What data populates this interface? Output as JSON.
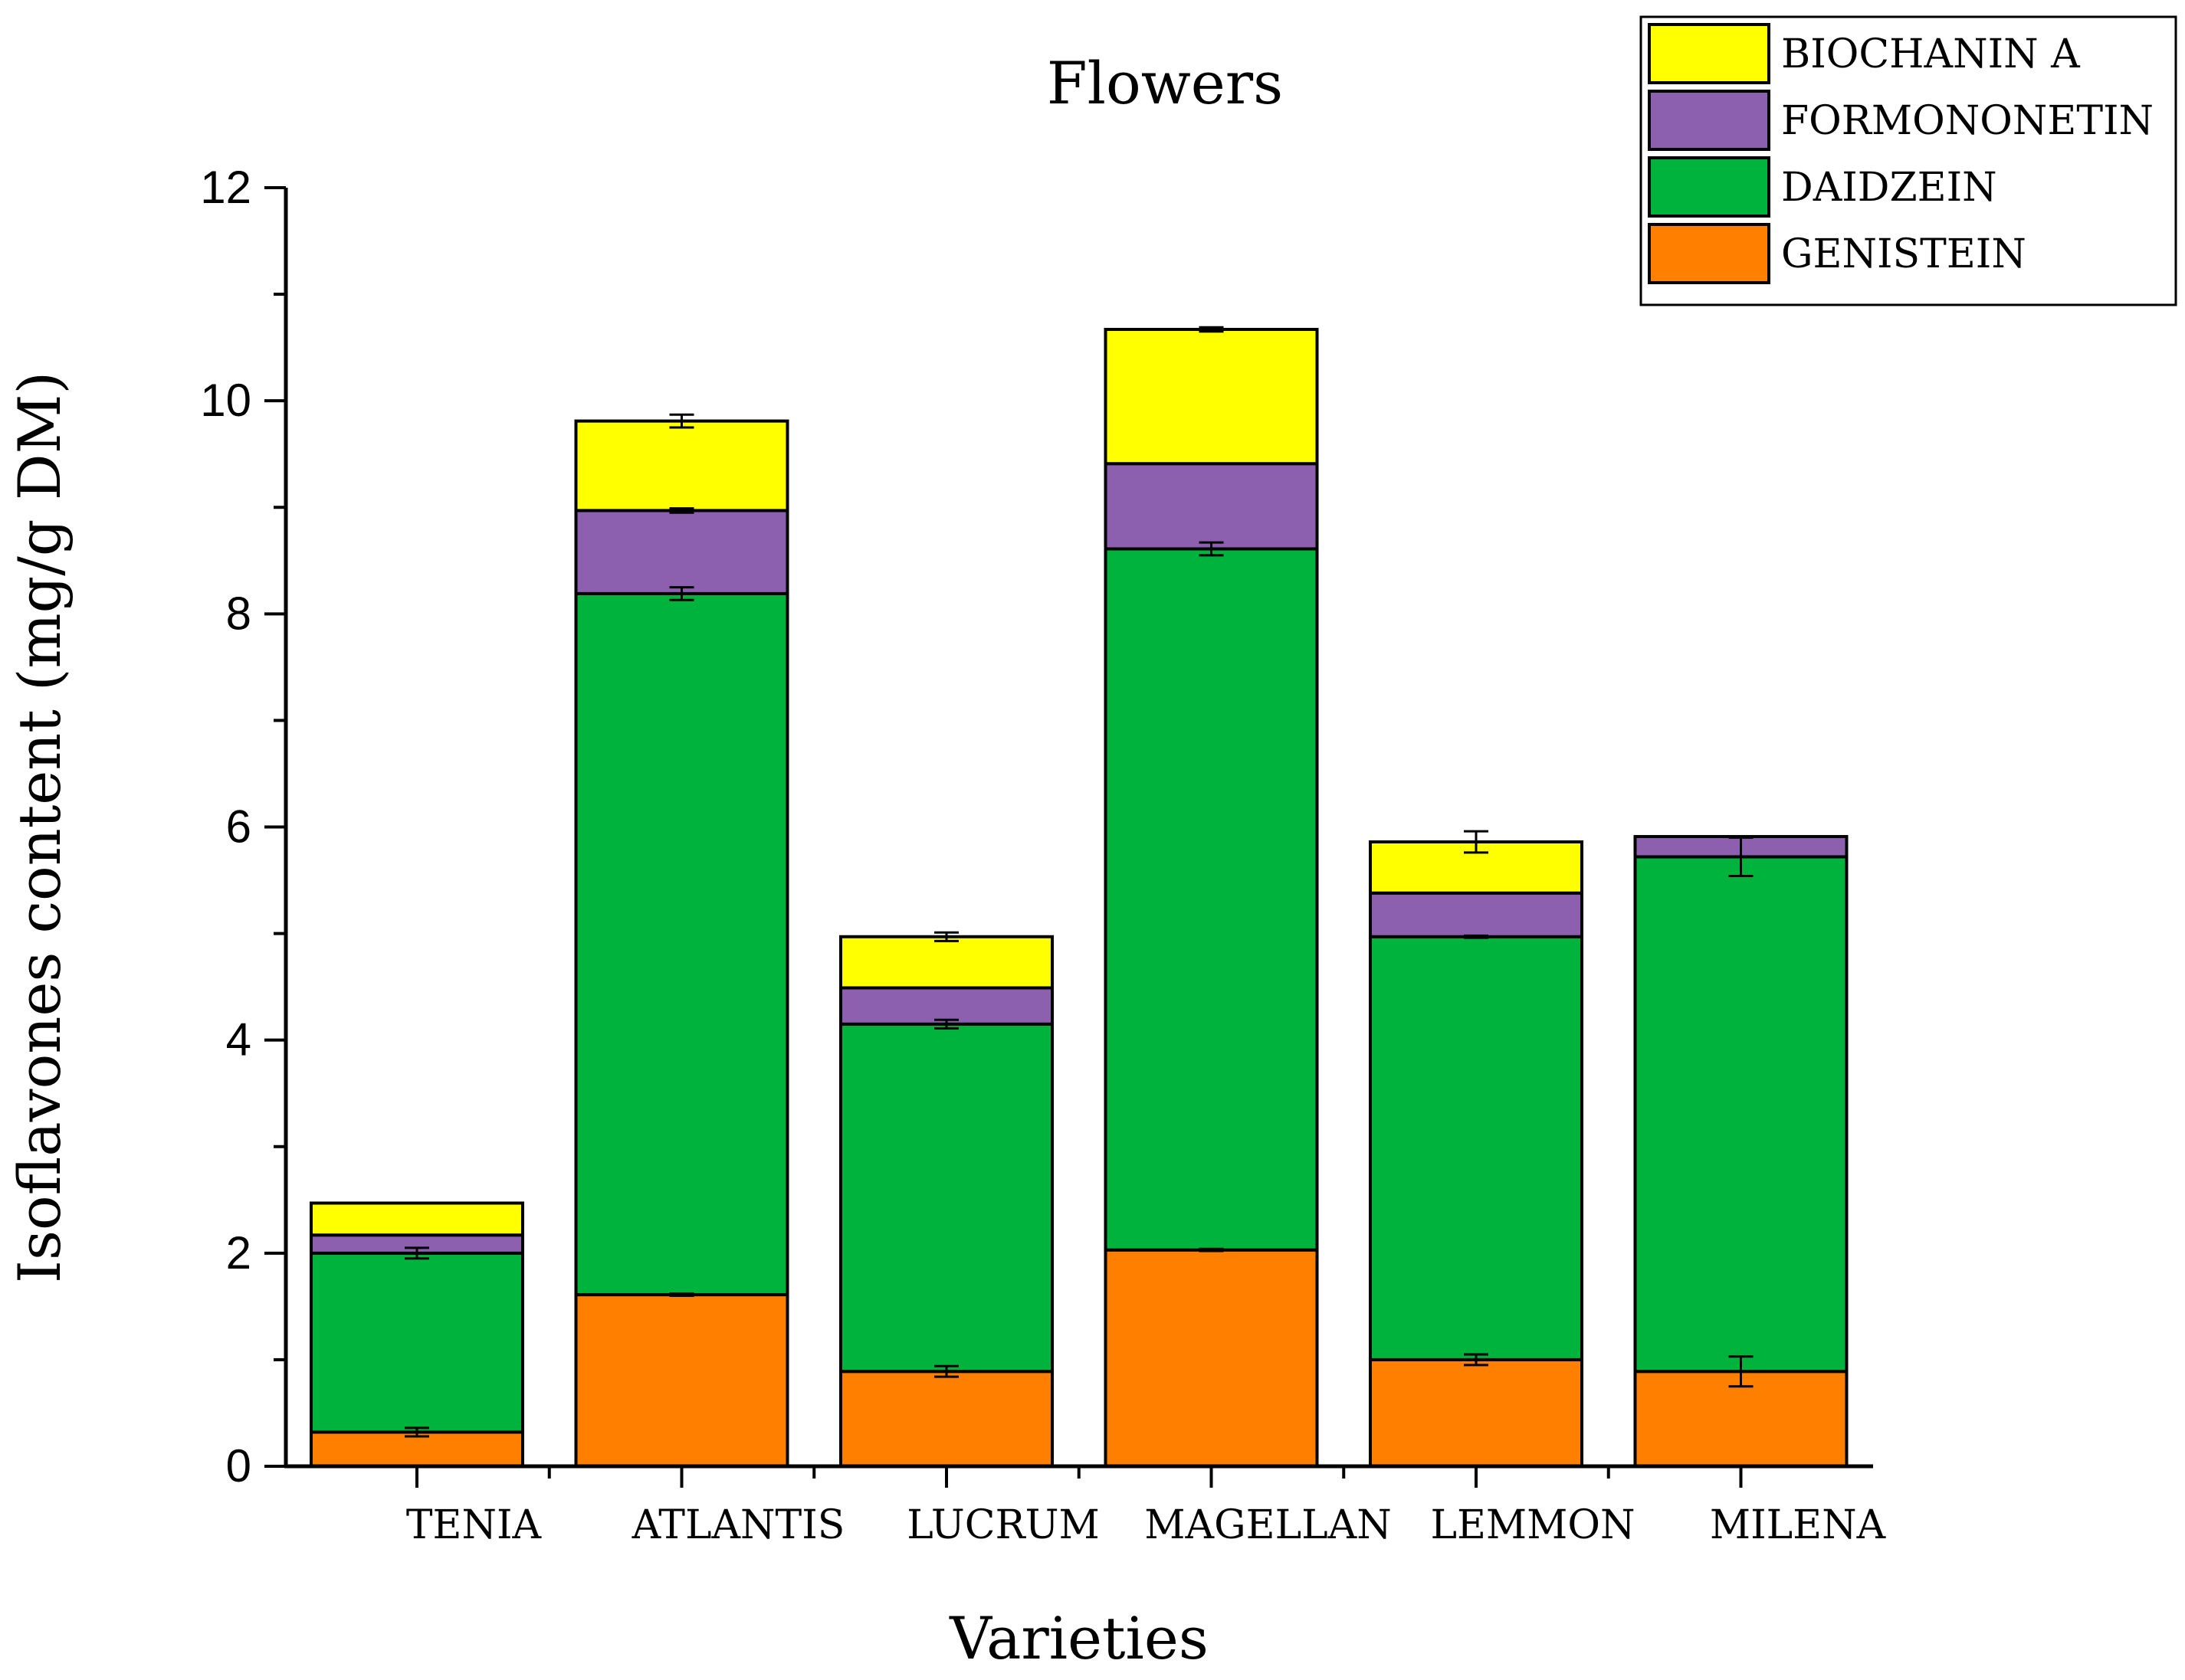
{
  "chart_data": {
    "type": "bar",
    "stacked": true,
    "title": "Flowers",
    "xlabel": "Varieties",
    "ylabel": "Isoflavones content (mg/g DM)",
    "ylim": [
      0,
      12
    ],
    "yticks": [
      0,
      2,
      4,
      6,
      8,
      10,
      12
    ],
    "legend_position": "top-right",
    "categories": [
      "TENIA",
      "ATLANTIS",
      "LUCRUM",
      "MAGELLAN",
      "LEMMON",
      "MILENA"
    ],
    "series": [
      {
        "name": "GENISTEIN",
        "color": "#FF8000",
        "values": [
          0.32,
          1.61,
          0.89,
          2.03,
          1.0,
          0.89
        ],
        "errors": [
          0.04,
          0.01,
          0.05,
          0.01,
          0.05,
          0.14
        ]
      },
      {
        "name": "DAIDZEIN",
        "color": "#00B33C",
        "values": [
          1.68,
          6.58,
          3.26,
          6.58,
          3.97,
          4.83
        ],
        "errors": [
          0.05,
          0.06,
          0.04,
          0.06,
          0.01,
          0.18
        ]
      },
      {
        "name": "FORMONONETIN",
        "color": "#8C5FAF",
        "values": [
          0.17,
          0.78,
          0.34,
          0.8,
          0.41,
          0.19
        ],
        "errors": [
          0.0,
          0.02,
          0.0,
          0.0,
          0.0,
          0.0
        ]
      },
      {
        "name": "BIOCHANIN A",
        "color": "#FFFF00",
        "values": [
          0.3,
          0.84,
          0.48,
          1.26,
          0.48,
          0.0
        ],
        "errors": [
          0.0,
          0.06,
          0.04,
          0.02,
          0.1,
          0.0
        ]
      }
    ],
    "legend_order": [
      "BIOCHANIN A",
      "FORMONONETIN",
      "DAIDZEIN",
      "GENISTEIN"
    ]
  }
}
